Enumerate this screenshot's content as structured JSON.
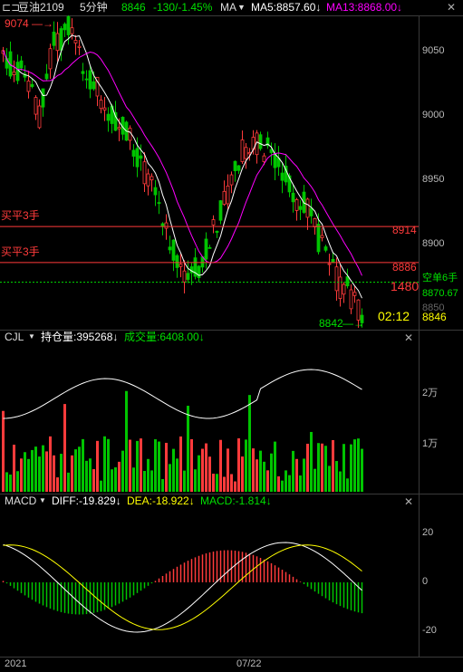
{
  "header": {
    "symbol": "豆油2109",
    "period": "5分钟",
    "last_price": "8846",
    "change": "-130/-1.45%",
    "indicator": "MA",
    "ma5": "MA5:8857.60↓",
    "ma13": "MA13:8868.00↓"
  },
  "colors": {
    "up": "#ff3b3b",
    "down": "#00c400",
    "ma5": "#ffffff",
    "ma13": "#ff00ff",
    "yellow": "#ffff00",
    "green_text": "#00e000"
  },
  "main_chart": {
    "y_ticks": [
      "9050",
      "9000",
      "8950",
      "8900",
      "8850"
    ],
    "high_marker": "9074",
    "low_marker": "8842",
    "hlines": [
      {
        "label": "买平3手",
        "price": "8914"
      },
      {
        "label": "买平3手",
        "price": "8886"
      }
    ],
    "position_label": "空单6手",
    "position_price": "8870.67",
    "position_lots": "1480",
    "countdown": "02:12",
    "current_price": "8846"
  },
  "volume_panel": {
    "name": "CJL",
    "open_interest": "持仓量:395268↓",
    "volume": "成交量:6408.00↓",
    "y_ticks": [
      "2万",
      "1万"
    ]
  },
  "macd_panel": {
    "name": "MACD",
    "diff": "DIFF:-19.829↓",
    "dea": "DEA:-18.922↓",
    "macd": "MACD:-1.814↓",
    "y_ticks": [
      "20",
      "0",
      "-20"
    ]
  },
  "x_axis": {
    "left_label": "2021",
    "mid_label": "07/22"
  },
  "chart_data": {
    "type": "candlestick",
    "ylim": [
      8835,
      9085
    ],
    "candle_count": 100,
    "high": 9074,
    "low": 8842,
    "last": 8846
  }
}
